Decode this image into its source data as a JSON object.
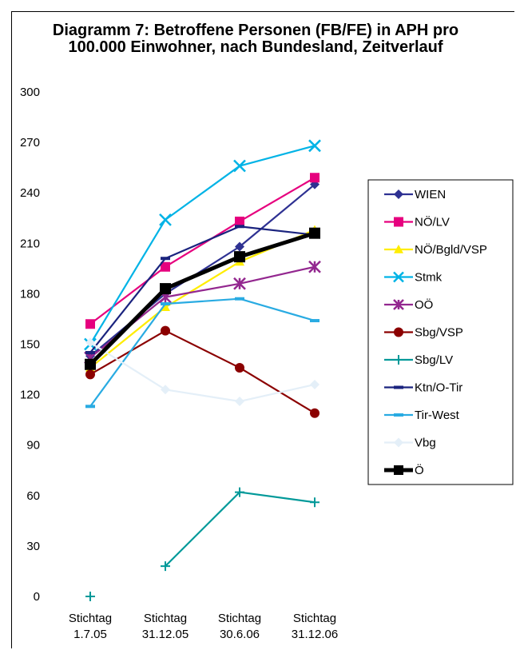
{
  "chart_data": {
    "type": "line",
    "title": "Diagramm 7: Betroffene Personen (FB/FE) in APH pro 100.000 Einwohner, nach Bundesland, Zeitverlauf",
    "categories": [
      {
        "line1": "Stichtag",
        "line2": "1.7.05"
      },
      {
        "line1": "Stichtag",
        "line2": "31.12.05"
      },
      {
        "line1": "Stichtag",
        "line2": "30.6.06"
      },
      {
        "line1": "Stichtag",
        "line2": "31.12.06"
      }
    ],
    "y_ticks": [
      "0",
      "30",
      "60",
      "90",
      "120",
      "150",
      "180",
      "210",
      "240",
      "270",
      "300"
    ],
    "ylim": [
      0,
      300
    ],
    "grid": false,
    "legend_position": "right",
    "series": [
      {
        "name": "WIEN",
        "color": "#2e3192",
        "marker": "diamond",
        "values": [
          143,
          180,
          208,
          245
        ]
      },
      {
        "name": "NÖ/LV",
        "color": "#e6007e",
        "marker": "square",
        "values": [
          162,
          196,
          223,
          249
        ]
      },
      {
        "name": "NÖ/Bgld/VSP",
        "color": "#ffed00",
        "marker": "triangle",
        "values": [
          136,
          172,
          199,
          218
        ]
      },
      {
        "name": "Stmk",
        "color": "#00b3e6",
        "marker": "x",
        "values": [
          150,
          224,
          256,
          268
        ]
      },
      {
        "name": "OÖ",
        "color": "#93278f",
        "marker": "asterisk",
        "values": [
          142,
          178,
          186,
          196
        ]
      },
      {
        "name": "Sbg/VSP",
        "color": "#8b0000",
        "marker": "circle",
        "values": [
          132,
          158,
          136,
          109
        ]
      },
      {
        "name": "Sbg/LV",
        "color": "#009999",
        "marker": "plus",
        "values": [
          0,
          18,
          62,
          56
        ]
      },
      {
        "name": "Ktn/O-Tir",
        "color": "#1a237e",
        "marker": "dash",
        "values": [
          145,
          201,
          220,
          215
        ]
      },
      {
        "name": "Tir-West",
        "color": "#29abe2",
        "marker": "dash",
        "values": [
          113,
          174,
          177,
          164
        ]
      },
      {
        "name": "Vbg",
        "color": "#e4eff8",
        "marker": "diamond",
        "values": [
          151,
          123,
          116,
          126
        ]
      },
      {
        "name": "Ö",
        "color": "#000000",
        "marker": "square",
        "values": [
          138,
          183,
          202,
          216
        ],
        "bold": true
      }
    ],
    "connect_from_index": {
      "Sbg/LV": 1
    }
  }
}
